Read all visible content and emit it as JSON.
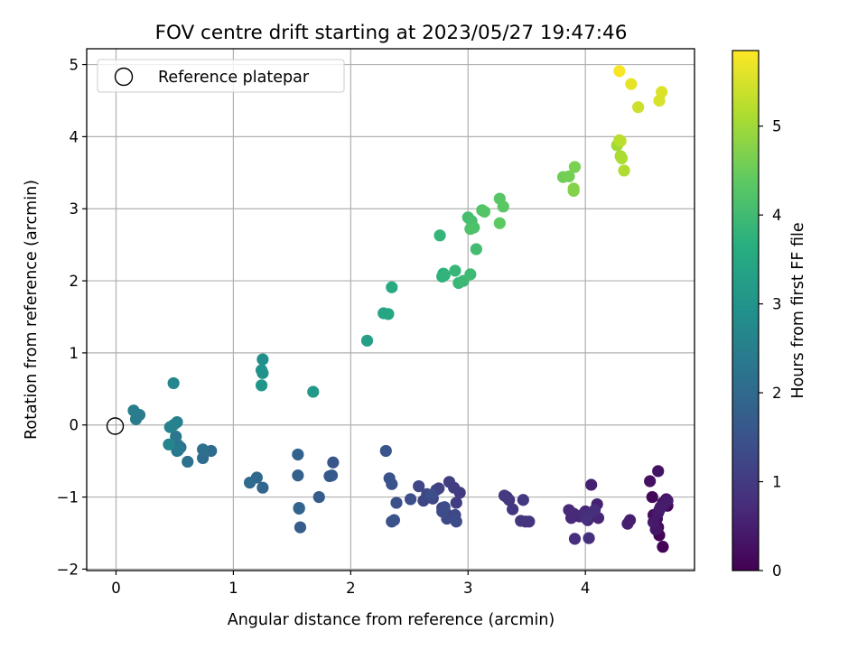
{
  "chart_data": {
    "type": "scatter",
    "title": "FOV centre drift starting at 2023/05/27 19:47:46",
    "xlabel": "Angular distance from reference (arcmin)",
    "ylabel": "Rotation from reference (arcmin)",
    "xlim": [
      -0.25,
      4.93
    ],
    "ylim": [
      -2.02,
      5.22
    ],
    "xticks": [
      0,
      1,
      2,
      3,
      4
    ],
    "yticks": [
      -2,
      -1,
      0,
      1,
      2,
      3,
      4,
      5
    ],
    "grid": true,
    "legend": {
      "position": "top-left",
      "entries": [
        "Reference platepar"
      ]
    },
    "reference_point": {
      "x": 0,
      "y": 0,
      "label": "Reference platepar"
    },
    "colorbar": {
      "label": "Hours from first FF file",
      "min": 0,
      "max": 5.85,
      "ticks": [
        0,
        1,
        2,
        3,
        4,
        5
      ],
      "colormap": "viridis"
    },
    "series": [
      {
        "x": [
          4.66,
          4.63,
          4.7,
          4.57,
          4.62,
          4.68,
          4.6,
          4.61,
          4.58,
          4.64,
          4.69,
          4.55,
          4.62,
          4.66,
          4.6,
          4.63,
          4.67,
          4.58,
          4.62,
          4.7,
          4.64,
          4.38,
          4.36,
          4.05,
          4.1,
          4.0,
          4.02,
          4.06,
          4.11,
          3.95,
          3.9,
          3.86,
          3.88,
          3.98,
          4.04,
          4.08,
          3.91,
          4.03,
          4.01
        ],
        "y": [
          -1.69,
          -1.53,
          -1.12,
          -1.0,
          -1.42,
          -1.1,
          -1.38,
          -1.3,
          -1.25,
          -1.15,
          -1.03,
          -0.78,
          -0.64,
          -1.08,
          -1.45,
          -1.18,
          -1.11,
          -1.35,
          -1.22,
          -1.05,
          -1.14,
          -1.32,
          -1.37,
          -0.83,
          -1.1,
          -1.2,
          -1.32,
          -1.25,
          -1.29,
          -1.27,
          -1.23,
          -1.18,
          -1.29,
          -1.24,
          -1.22,
          -1.18,
          -1.58,
          -1.57,
          -1.3
        ],
        "t": [
          0.05,
          0.07,
          0.1,
          0.12,
          0.14,
          0.16,
          0.18,
          0.2,
          0.22,
          0.24,
          0.26,
          0.28,
          0.3,
          0.32,
          0.34,
          0.36,
          0.38,
          0.4,
          0.42,
          0.44,
          0.46,
          0.48,
          0.5,
          0.52,
          0.54,
          0.56,
          0.58,
          0.6,
          0.62,
          0.64,
          0.66,
          0.68,
          0.7,
          0.72,
          0.74,
          0.76,
          0.78,
          0.8,
          0.82
        ]
      },
      {
        "x": [
          3.49,
          3.45,
          3.52,
          3.38,
          3.35,
          3.31,
          3.47,
          3.33,
          2.93,
          2.88,
          2.9,
          2.84,
          2.78,
          2.81,
          2.75,
          2.86,
          2.73,
          2.68,
          2.7,
          2.62,
          2.58,
          2.65,
          2.89,
          2.82,
          2.9,
          2.78,
          2.8,
          2.69,
          2.51,
          2.39,
          2.35,
          2.37,
          2.35,
          2.33,
          2.3
        ],
        "y": [
          -1.34,
          -1.33,
          -1.34,
          -1.17,
          -1.04,
          -0.98,
          -1.04,
          -1.0,
          -0.94,
          -0.87,
          -1.08,
          -0.79,
          -1.15,
          -1.22,
          -0.88,
          -1.28,
          -0.9,
          -1.0,
          -1.02,
          -1.05,
          -0.85,
          -0.96,
          -1.25,
          -1.3,
          -1.34,
          -1.2,
          -1.14,
          -0.97,
          -1.03,
          -1.08,
          -1.34,
          -1.32,
          -0.82,
          -0.74,
          -0.36
        ],
        "t": [
          0.84,
          0.86,
          0.88,
          0.9,
          0.92,
          0.94,
          0.96,
          0.98,
          1.0,
          1.02,
          1.04,
          1.06,
          1.08,
          1.1,
          1.12,
          1.14,
          1.16,
          1.18,
          1.2,
          1.22,
          1.24,
          1.26,
          1.28,
          1.3,
          1.32,
          1.34,
          1.36,
          1.38,
          1.4,
          1.42,
          1.44,
          1.46,
          1.48,
          1.5,
          1.52
        ]
      },
      {
        "x": [
          1.85,
          1.82,
          1.84,
          1.73,
          1.57,
          1.56,
          1.55,
          1.55,
          1.56,
          1.25,
          1.2,
          1.14,
          0.81,
          0.74,
          0.74,
          0.61,
          0.55,
          0.53,
          0.52,
          0.51,
          0.53
        ],
        "y": [
          -0.52,
          -0.71,
          -0.7,
          -1.0,
          -1.42,
          -1.15,
          -0.7,
          -0.41,
          -1.16,
          -0.87,
          -0.73,
          -0.8,
          -0.36,
          -0.46,
          -0.34,
          -0.51,
          -0.31,
          -0.28,
          -0.36,
          -0.16,
          -0.35
        ],
        "t": [
          1.56,
          1.6,
          1.64,
          1.68,
          1.72,
          1.76,
          1.8,
          1.84,
          1.88,
          1.92,
          1.96,
          2.0,
          2.04,
          2.08,
          2.12,
          2.16,
          2.2,
          2.24,
          2.28,
          2.32,
          2.36
        ]
      },
      {
        "x": [
          0.2,
          0.17,
          0.15,
          0.52,
          0.49,
          0.46,
          0.45,
          0.49,
          1.25,
          1.24,
          1.25,
          1.24,
          1.68
        ],
        "y": [
          0.14,
          0.08,
          0.2,
          0.04,
          0.0,
          -0.03,
          -0.27,
          0.58,
          0.91,
          0.76,
          0.72,
          0.55,
          0.46
        ],
        "t": [
          2.4,
          2.44,
          2.48,
          2.52,
          2.56,
          2.6,
          2.64,
          2.68,
          2.9,
          2.94,
          2.98,
          3.02,
          3.12
        ]
      },
      {
        "x": [
          2.14,
          2.28,
          2.32,
          2.35,
          2.79,
          2.78,
          2.8,
          2.76,
          2.89,
          2.92,
          2.96,
          3.02,
          3.07,
          3.0,
          3.03,
          3.05,
          3.02,
          3.12,
          3.14,
          3.27,
          3.3,
          3.27
        ],
        "y": [
          1.17,
          1.55,
          1.54,
          1.91,
          2.1,
          2.06,
          2.08,
          2.63,
          2.14,
          1.97,
          2.0,
          2.09,
          2.44,
          2.88,
          2.83,
          2.74,
          2.72,
          2.98,
          2.96,
          3.14,
          3.03,
          2.8
        ],
        "t": [
          3.3,
          3.4,
          3.45,
          3.52,
          3.7,
          3.74,
          3.78,
          3.82,
          3.86,
          3.9,
          3.94,
          3.98,
          4.02,
          4.06,
          4.1,
          4.14,
          4.18,
          4.22,
          4.26,
          4.3,
          4.34,
          4.38
        ]
      },
      {
        "x": [
          3.81,
          3.86,
          3.91,
          3.9,
          3.9,
          4.27,
          4.3,
          4.31,
          4.33,
          4.29,
          4.3,
          4.45,
          4.63,
          4.65,
          4.39,
          4.29
        ],
        "y": [
          3.44,
          3.45,
          3.58,
          3.25,
          3.28,
          3.88,
          3.73,
          3.7,
          3.53,
          3.95,
          3.94,
          4.41,
          4.5,
          4.62,
          4.73,
          4.91
        ],
        "t": [
          4.55,
          4.6,
          4.65,
          4.7,
          4.74,
          5.0,
          5.05,
          5.1,
          5.15,
          5.2,
          5.25,
          5.4,
          5.5,
          5.55,
          5.65,
          5.8
        ]
      }
    ]
  }
}
